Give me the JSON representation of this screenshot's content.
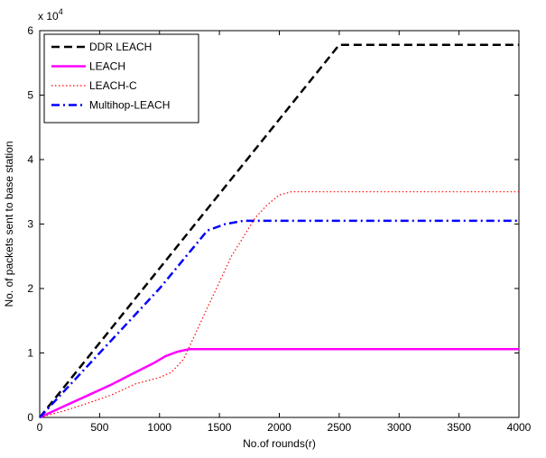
{
  "chart_data": {
    "type": "line",
    "xlabel": "No.of rounds(r)",
    "ylabel": "No. of packets sent to base station",
    "y_multiplier_label": "x 10",
    "y_multiplier_exponent": "4",
    "xlim": [
      0,
      4000
    ],
    "ylim": [
      0,
      6
    ],
    "xticks": [
      0,
      500,
      1000,
      1500,
      2000,
      2500,
      3000,
      3500,
      4000
    ],
    "yticks": [
      0,
      1,
      2,
      3,
      4,
      5,
      6
    ],
    "grid": false,
    "legend_position": "top-left",
    "series": [
      {
        "name": "DDR LEACH",
        "color": "#000000",
        "style": "dashed",
        "x": [
          0,
          2500,
          4000
        ],
        "y": [
          0,
          5.78,
          5.78
        ]
      },
      {
        "name": "LEACH",
        "color": "#ff00ff",
        "style": "solid",
        "x": [
          0,
          200,
          400,
          600,
          800,
          950,
          1050,
          1150,
          1250,
          2000,
          4000
        ],
        "y": [
          0,
          0.17,
          0.34,
          0.51,
          0.7,
          0.84,
          0.95,
          1.02,
          1.06,
          1.06,
          1.06
        ]
      },
      {
        "name": "LEACH-C",
        "color": "#ff0000",
        "style": "dotted",
        "x": [
          0,
          200,
          400,
          600,
          800,
          1000,
          1100,
          1200,
          1300,
          1400,
          1500,
          1600,
          1700,
          1800,
          1900,
          2000,
          2100,
          2200,
          4000
        ],
        "y": [
          0,
          0.1,
          0.22,
          0.35,
          0.52,
          0.62,
          0.7,
          0.9,
          1.3,
          1.7,
          2.1,
          2.5,
          2.8,
          3.1,
          3.3,
          3.45,
          3.5,
          3.5,
          3.5
        ]
      },
      {
        "name": "Multihop-LEACH",
        "color": "#0000ff",
        "style": "dashdot",
        "x": [
          0,
          1000,
          1400,
          1550,
          1700,
          1800,
          4000
        ],
        "y": [
          0,
          2.0,
          2.9,
          3.0,
          3.05,
          3.05,
          3.05
        ]
      }
    ]
  }
}
